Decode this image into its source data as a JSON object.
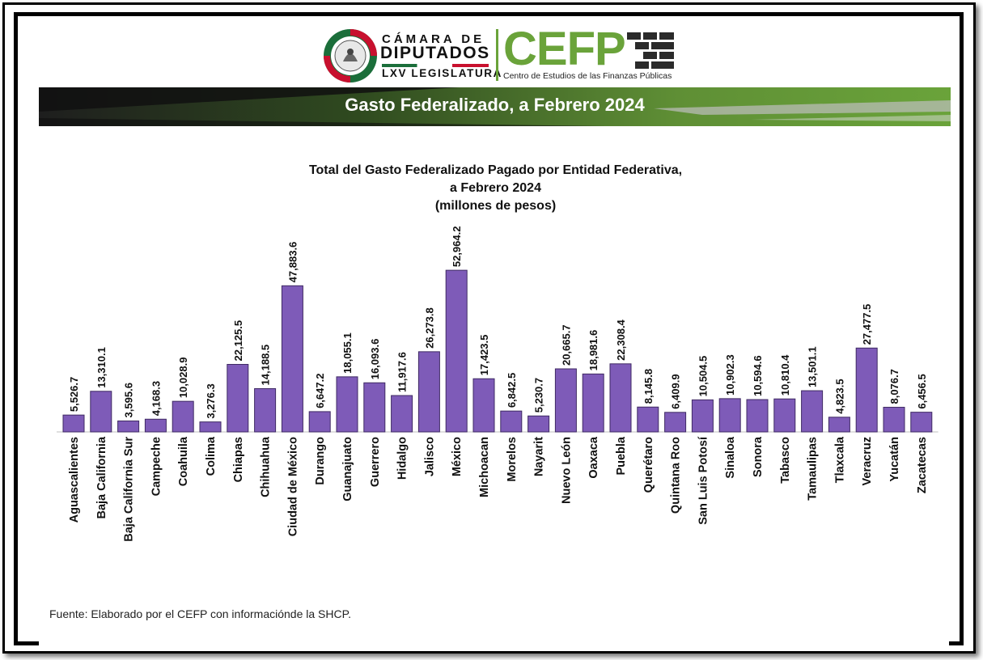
{
  "header": {
    "camara_line1": "CÁMARA DE",
    "camara_line2": "DIPUTADOS",
    "camara_line3": "LXV LEGISLATURA",
    "cefp": "CEFP",
    "cefp_subtitle": "Centro de Estudios de las Finanzas Públicas",
    "banner_title": "Gasto Federalizado, a Febrero 2024"
  },
  "colors": {
    "bar_fill": "#7e5bb8",
    "bar_stroke": "#3f2a63",
    "green": "#6aa33a",
    "dark": "#1a1a1a"
  },
  "chart_data": {
    "type": "bar",
    "title_lines": [
      "Total del Gasto Federalizado Pagado por Entidad Federativa,",
      "a Febrero 2024",
      "(millones de pesos)"
    ],
    "xlabel": "",
    "ylabel": "",
    "ylim": [
      0,
      55000
    ],
    "grid": false,
    "categories": [
      "Aguascalientes",
      "Baja California",
      "Baja California Sur",
      "Campeche",
      "Coahuila",
      "Colima",
      "Chiapas",
      "Chihuahua",
      "Ciudad de México",
      "Durango",
      "Guanajuato",
      "Guerrero",
      "Hidalgo",
      "Jalisco",
      "México",
      "Michoacan",
      "Morelos",
      "Nayarit",
      "Nuevo León",
      "Oaxaca",
      "Puebla",
      "Querétaro",
      "Quintana Roo",
      "San Luis Potosí",
      "Sinaloa",
      "Sonora",
      "Tabasco",
      "Tamaulipas",
      "Tlaxcala",
      "Veracruz",
      "Yucatán",
      "Zacatecas"
    ],
    "values": [
      5526.7,
      13310.1,
      3595.6,
      4168.3,
      10028.9,
      3276.3,
      22125.5,
      14188.5,
      47883.6,
      6647.2,
      18055.1,
      16093.6,
      11917.6,
      26273.8,
      52964.2,
      17423.5,
      6842.5,
      5230.7,
      20665.7,
      18981.6,
      22308.4,
      8145.8,
      6409.9,
      10504.5,
      10902.3,
      10594.6,
      10810.4,
      13501.1,
      4823.5,
      27477.5,
      8076.7,
      6456.5
    ],
    "labels": [
      "5,526.7",
      "13,310.1",
      "3,595.6",
      "4,168.3",
      "10,028.9",
      "3,276.3",
      "22,125.5",
      "14,188.5",
      "47,883.6",
      "6,647.2",
      "18,055.1",
      "16,093.6",
      "11,917.6",
      "26,273.8",
      "52,964.2",
      "17,423.5",
      "6,842.5",
      "5,230.7",
      "20,665.7",
      "18,981.6",
      "22,308.4",
      "8,145.8",
      "6,409.9",
      "10,504.5",
      "10,902.3",
      "10,594.6",
      "10,810.4",
      "13,501.1",
      "4,823.5",
      "27,477.5",
      "8,076.7",
      "6,456.5"
    ]
  },
  "footer": {
    "source": "Fuente: Elaborado por el CEFP con informaciónde la SHCP."
  }
}
